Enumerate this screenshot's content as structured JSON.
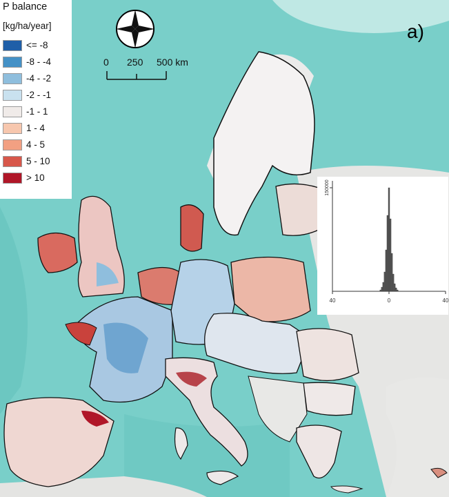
{
  "legend": {
    "title": "P balance",
    "unit": "[kg/ha/year]",
    "classes": [
      {
        "label": "<= -8",
        "color": "#1f5fa8"
      },
      {
        "label": "-8 - -4",
        "color": "#4591c6"
      },
      {
        "label": "-4 - -2",
        "color": "#8fbedd"
      },
      {
        "label": "-2 - -1",
        "color": "#c9e1ef"
      },
      {
        "label": "-1 - 1",
        "color": "#f0ebe9"
      },
      {
        "label": "1 - 4",
        "color": "#f7c7ae"
      },
      {
        "label": "4 - 5",
        "color": "#f2a082"
      },
      {
        "label": "5 - 10",
        "color": "#d7574a"
      },
      {
        "label": "> 10",
        "color": "#b01628"
      }
    ]
  },
  "panel_label": "a)",
  "scale_bar": {
    "ticks": [
      "0",
      "250",
      "500 km"
    ]
  },
  "compass": "north-arrow-icon",
  "colors": {
    "sea": "#79cfc9",
    "land_outside": "#e6e6e4",
    "border": "#111111",
    "histogram_bar": "#555555"
  },
  "histogram": {
    "y_tick": "150000",
    "x_ticks": [
      "40",
      "0",
      "40"
    ],
    "x_values": [
      -40,
      0,
      40
    ],
    "bins": [
      {
        "x": -6,
        "count": 2000
      },
      {
        "x": -5,
        "count": 6000
      },
      {
        "x": -4,
        "count": 13000
      },
      {
        "x": -3,
        "count": 28000
      },
      {
        "x": -2,
        "count": 60000
      },
      {
        "x": -1,
        "count": 110000
      },
      {
        "x": 0,
        "count": 150000
      },
      {
        "x": 1,
        "count": 105000
      },
      {
        "x": 2,
        "count": 55000
      },
      {
        "x": 3,
        "count": 25000
      },
      {
        "x": 4,
        "count": 11000
      },
      {
        "x": 5,
        "count": 5000
      },
      {
        "x": 6,
        "count": 2000
      }
    ]
  }
}
